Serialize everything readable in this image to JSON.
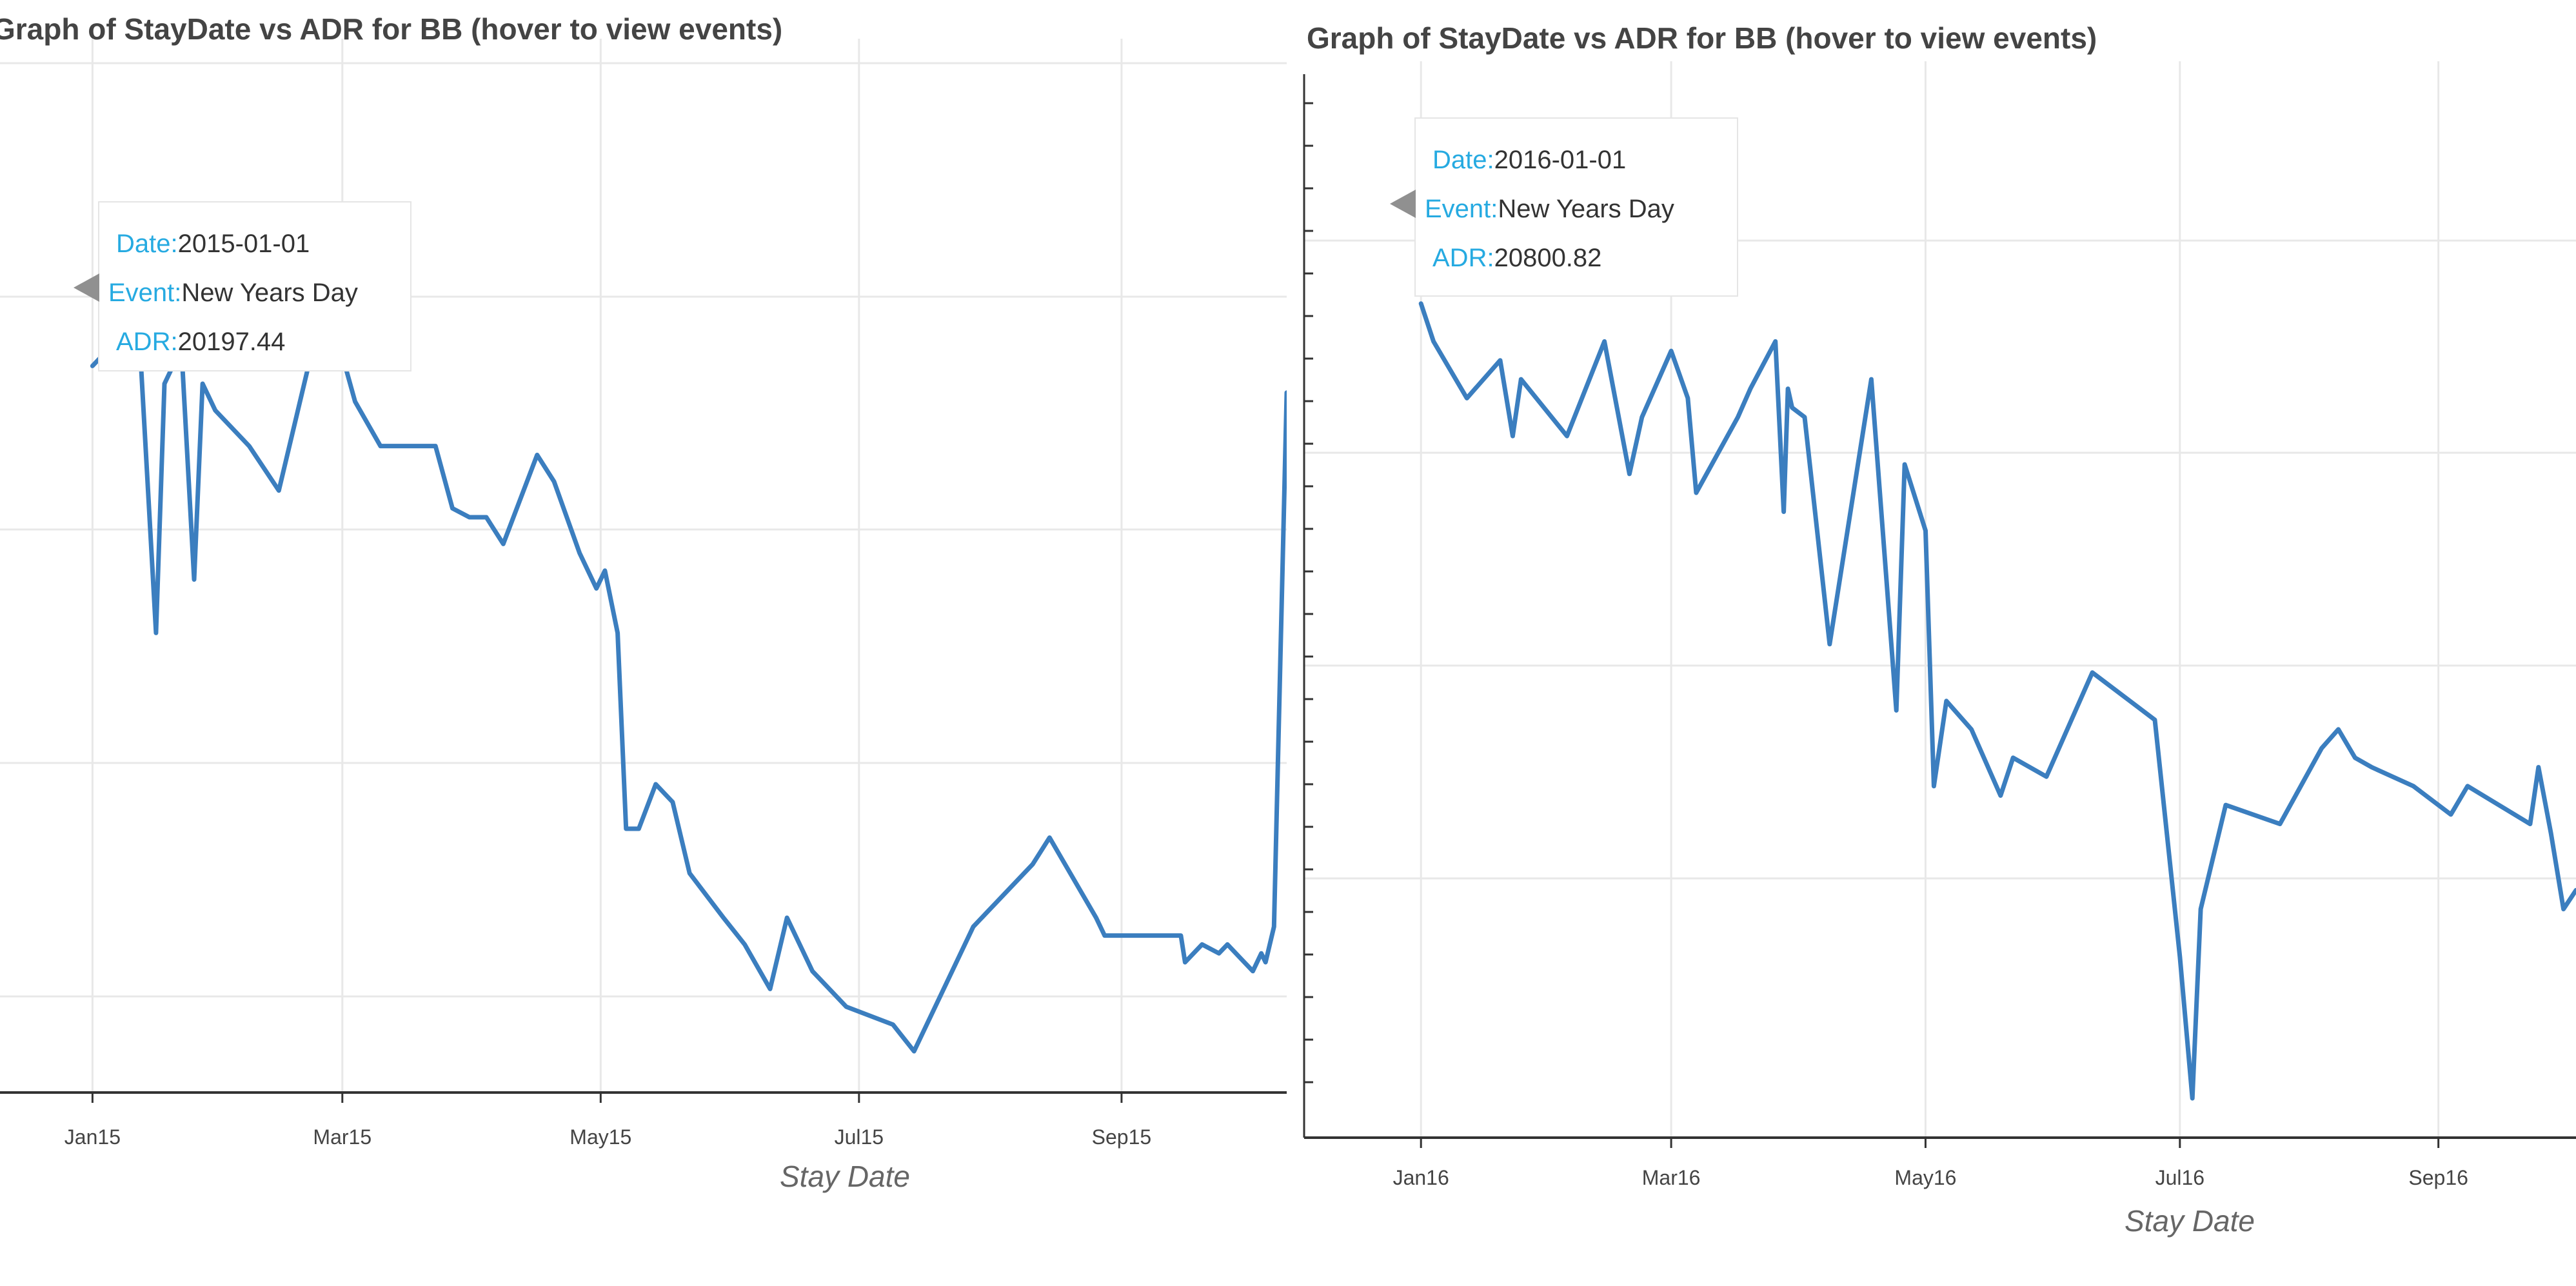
{
  "chart_data": [
    {
      "type": "line",
      "title": "Graph of StayDate vs ADR for BB (hover to view events)",
      "xlabel": "Stay Date",
      "ylabel": "",
      "x_tick_labels": [
        "Jan15",
        "Mar15",
        "May15",
        "Jul15",
        "Sep15"
      ],
      "x_tick_dates": [
        "2015-01-01",
        "2015-03-01",
        "2015-05-01",
        "2015-07-01",
        "2015-09-01"
      ],
      "xlim": [
        "2014-12-26",
        "2015-10-10"
      ],
      "ylim": [
        0,
        100
      ],
      "y_grid": [
        0,
        20,
        40,
        60,
        80
      ],
      "grid": true,
      "line_color": "#3b7ebf",
      "series": [
        {
          "points": [
            [
              "2015-01-01",
              77
            ],
            [
              "2015-01-03",
              78
            ],
            [
              "2015-01-04",
              90
            ],
            [
              "2015-01-05",
              83
            ],
            [
              "2015-01-06",
              83
            ],
            [
              "2015-01-12",
              81
            ],
            [
              "2015-01-16",
              47
            ],
            [
              "2015-01-18",
              75
            ],
            [
              "2015-01-22",
              79
            ],
            [
              "2015-01-25",
              53
            ],
            [
              "2015-01-27",
              75
            ],
            [
              "2015-01-30",
              72
            ],
            [
              "2015-02-07",
              68
            ],
            [
              "2015-02-14",
              63
            ],
            [
              "2015-02-25",
              85
            ],
            [
              "2015-03-04",
              73
            ],
            [
              "2015-03-10",
              68
            ],
            [
              "2015-03-23",
              68
            ],
            [
              "2015-03-27",
              61
            ],
            [
              "2015-03-31",
              60
            ],
            [
              "2015-04-04",
              60
            ],
            [
              "2015-04-08",
              57
            ],
            [
              "2015-04-16",
              67
            ],
            [
              "2015-04-20",
              64
            ],
            [
              "2015-04-26",
              56
            ],
            [
              "2015-04-30",
              52
            ],
            [
              "2015-05-02",
              54
            ],
            [
              "2015-05-05",
              47
            ],
            [
              "2015-05-07",
              25
            ],
            [
              "2015-05-10",
              25
            ],
            [
              "2015-05-14",
              30
            ],
            [
              "2015-05-18",
              28
            ],
            [
              "2015-05-22",
              20
            ],
            [
              "2015-05-30",
              15
            ],
            [
              "2015-06-04",
              12
            ],
            [
              "2015-06-10",
              7
            ],
            [
              "2015-06-14",
              15
            ],
            [
              "2015-06-20",
              9
            ],
            [
              "2015-06-28",
              5
            ],
            [
              "2015-07-09",
              3
            ],
            [
              "2015-07-14",
              0
            ],
            [
              "2015-07-28",
              14
            ],
            [
              "2015-08-11",
              21
            ],
            [
              "2015-08-15",
              24
            ],
            [
              "2015-08-26",
              15
            ],
            [
              "2015-08-28",
              13
            ],
            [
              "2015-09-09",
              13
            ],
            [
              "2015-09-15",
              13
            ],
            [
              "2015-09-16",
              10
            ],
            [
              "2015-09-20",
              12
            ],
            [
              "2015-09-24",
              11
            ],
            [
              "2015-09-26",
              12
            ],
            [
              "2015-09-30",
              10
            ],
            [
              "2015-10-02",
              9
            ],
            [
              "2015-10-04",
              11
            ],
            [
              "2015-10-05",
              10
            ],
            [
              "2015-10-07",
              14
            ],
            [
              "2015-10-10",
              74
            ]
          ]
        }
      ],
      "tooltip": {
        "date_label": "Date:",
        "date": "2015-01-01",
        "event_label": "Event:",
        "event": "New Years Day",
        "adr_label": "ADR:",
        "adr": "20197.44"
      }
    },
    {
      "type": "line",
      "title": "Graph of StayDate vs ADR for BB (hover to view events)",
      "xlabel": "Stay Date",
      "ylabel": "",
      "x_tick_labels": [
        "Jan16",
        "Mar16",
        "May16",
        "Jul16",
        "Sep16"
      ],
      "x_tick_dates": [
        "2016-01-01",
        "2016-03-01",
        "2016-05-01",
        "2016-07-01",
        "2016-09-01"
      ],
      "xlim": [
        "2015-12-23",
        "2016-10-04"
      ],
      "ylim": [
        0,
        100
      ],
      "y_grid": [
        0,
        20,
        40,
        60,
        80
      ],
      "grid": true,
      "line_color": "#3b7ebf",
      "series": [
        {
          "points": [
            [
              "2016-01-01",
              84
            ],
            [
              "2016-01-04",
              80
            ],
            [
              "2016-01-12",
              74
            ],
            [
              "2016-01-20",
              78
            ],
            [
              "2016-01-23",
              70
            ],
            [
              "2016-01-25",
              76
            ],
            [
              "2016-02-05",
              70
            ],
            [
              "2016-02-14",
              80
            ],
            [
              "2016-02-20",
              66
            ],
            [
              "2016-02-23",
              72
            ],
            [
              "2016-03-01",
              79
            ],
            [
              "2016-03-05",
              74
            ],
            [
              "2016-03-07",
              64
            ],
            [
              "2016-03-17",
              72
            ],
            [
              "2016-03-20",
              75
            ],
            [
              "2016-03-26",
              80
            ],
            [
              "2016-03-28",
              62
            ],
            [
              "2016-03-29",
              75
            ],
            [
              "2016-03-30",
              73
            ],
            [
              "2016-04-02",
              72
            ],
            [
              "2016-04-08",
              48
            ],
            [
              "2016-04-18",
              76
            ],
            [
              "2016-04-24",
              41
            ],
            [
              "2016-04-26",
              67
            ],
            [
              "2016-05-01",
              60
            ],
            [
              "2016-05-03",
              33
            ],
            [
              "2016-05-06",
              42
            ],
            [
              "2016-05-12",
              39
            ],
            [
              "2016-05-19",
              32
            ],
            [
              "2016-05-22",
              36
            ],
            [
              "2016-05-30",
              34
            ],
            [
              "2016-06-06",
              41
            ],
            [
              "2016-06-10",
              45
            ],
            [
              "2016-06-25",
              40
            ],
            [
              "2016-07-01",
              15
            ],
            [
              "2016-07-04",
              0
            ],
            [
              "2016-07-06",
              20
            ],
            [
              "2016-07-12",
              31
            ],
            [
              "2016-07-25",
              29
            ],
            [
              "2016-08-04",
              37
            ],
            [
              "2016-08-08",
              39
            ],
            [
              "2016-08-12",
              36
            ],
            [
              "2016-08-16",
              35
            ],
            [
              "2016-08-26",
              33
            ],
            [
              "2016-09-04",
              30
            ],
            [
              "2016-09-08",
              33
            ],
            [
              "2016-09-23",
              29
            ],
            [
              "2016-09-25",
              35
            ],
            [
              "2016-09-28",
              28
            ],
            [
              "2016-10-01",
              20
            ],
            [
              "2016-10-04",
              22
            ]
          ]
        }
      ],
      "tooltip": {
        "date_label": "Date:",
        "date": "2016-01-01",
        "event_label": "Event:",
        "event": "New Years Day",
        "adr_label": "ADR:",
        "adr": "20800.82"
      }
    }
  ]
}
